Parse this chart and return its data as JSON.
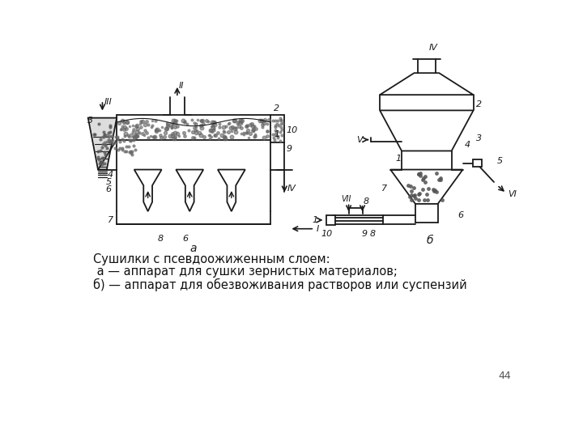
{
  "caption_line1": "Сушилки с псевдоожиженным слоем:",
  "caption_line2": " а — аппарат для сушки зернистых материалов;",
  "caption_line3": "б) — аппарат для обезвоживания растворов или суспензий",
  "page_number": "44",
  "bg_color": "#ffffff",
  "lc": "#1a1a1a",
  "lw": 1.3
}
